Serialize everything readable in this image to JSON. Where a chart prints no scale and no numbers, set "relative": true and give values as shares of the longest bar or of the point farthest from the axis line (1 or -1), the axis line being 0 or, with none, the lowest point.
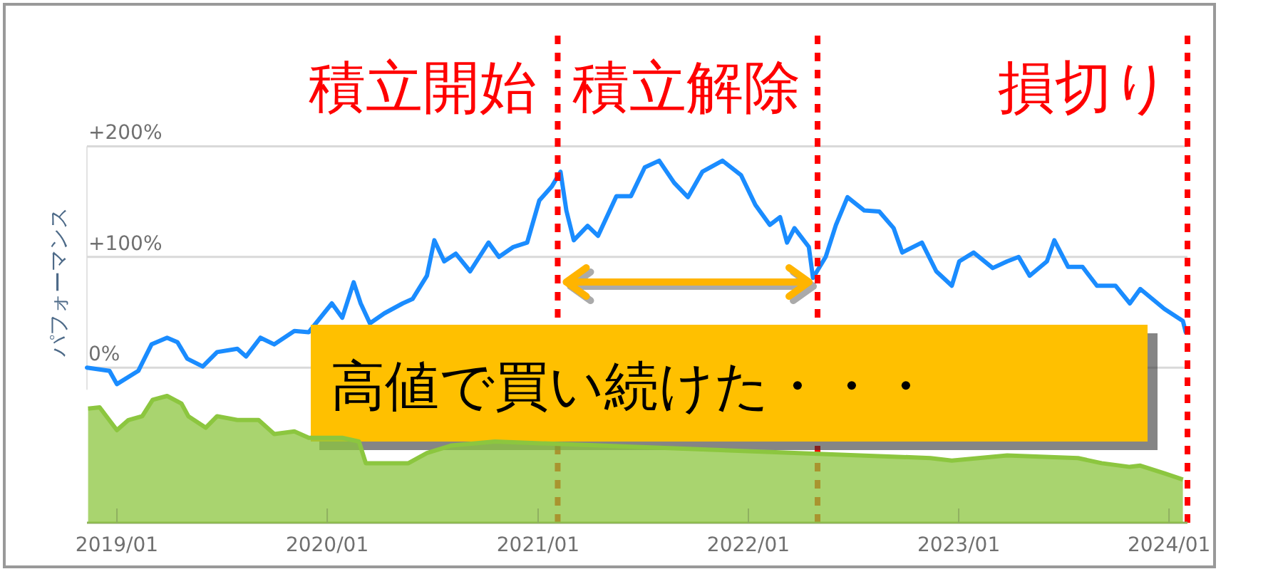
{
  "chart_data": [
    {
      "type": "line",
      "ylabel": "パフォーマンス",
      "x": [
        "2018-11-10",
        "2018-12-19",
        "2019-01-01",
        "2019-02-07",
        "2019-03-02",
        "2019-03-29",
        "2019-04-16",
        "2019-05-03",
        "2019-05-30",
        "2019-06-24",
        "2019-07-29",
        "2019-08-13",
        "2019-09-07",
        "2019-10-01",
        "2019-11-05",
        "2019-11-30",
        "2020-01-09",
        "2020-01-27",
        "2020-02-16",
        "2020-02-28",
        "2020-03-15",
        "2020-04-09",
        "2020-05-11",
        "2020-05-28",
        "2020-06-22",
        "2020-07-05",
        "2020-07-22",
        "2020-08-11",
        "2020-09-05",
        "2020-10-07",
        "2020-10-25",
        "2020-11-19",
        "2020-12-13",
        "2021-01-03",
        "2021-01-25",
        "2021-02-09",
        "2021-02-19",
        "2021-03-04",
        "2021-03-28",
        "2021-04-15",
        "2021-05-17",
        "2021-06-11",
        "2021-07-05",
        "2021-07-30",
        "2021-08-25",
        "2021-09-18",
        "2021-10-13",
        "2021-11-17",
        "2021-12-19",
        "2022-01-13",
        "2022-02-07",
        "2022-02-25",
        "2022-03-09",
        "2022-03-22",
        "2022-04-16",
        "2022-04-23",
        "2022-05-15",
        "2022-06-02",
        "2022-06-22",
        "2022-07-21",
        "2022-08-16",
        "2022-09-10",
        "2022-09-25",
        "2022-10-29",
        "2022-11-23",
        "2022-12-20",
        "2023-01-02",
        "2023-01-27",
        "2023-03-01",
        "2023-03-26",
        "2023-04-15",
        "2023-05-04",
        "2023-06-03",
        "2023-06-16",
        "2023-07-10",
        "2023-08-04",
        "2023-08-29",
        "2023-09-30",
        "2023-10-25",
        "2023-11-12",
        "2023-12-24",
        "2024-01-25",
        "2024-01-30"
      ],
      "series": [
        {
          "color": "#1a8cff",
          "values": [
            0,
            -3,
            -15,
            -3,
            21,
            27,
            23,
            8,
            1,
            14,
            17,
            10,
            27,
            21,
            33,
            32,
            58,
            45,
            77,
            58,
            40,
            49,
            58,
            62,
            83,
            115,
            96,
            103,
            87,
            113,
            100,
            109,
            113,
            151,
            164,
            177,
            142,
            115,
            128,
            119,
            155,
            155,
            181,
            187,
            167,
            154,
            177,
            187,
            174,
            147,
            129,
            136,
            113,
            126,
            109,
            81,
            100,
            129,
            154,
            142,
            141,
            126,
            104,
            113,
            87,
            74,
            96,
            104,
            90,
            96,
            100,
            83,
            96,
            115,
            91,
            91,
            74,
            74,
            58,
            71,
            53,
            42,
            32
          ]
        }
      ],
      "xlim": [
        "2018-11-10",
        "2024-02-02"
      ],
      "ylim": [
        -20,
        200
      ],
      "yticks": [
        {
          "value": 0,
          "label": "0%"
        },
        {
          "value": 100,
          "label": "+100%"
        },
        {
          "value": 200,
          "label": "+200%"
        }
      ],
      "grid": "y",
      "tick_labels": "y",
      "ref_lines": [
        {
          "axis": "x",
          "value": "2021-02-04",
          "label": "積立開始",
          "color": "#ff0000",
          "line_style": "dotted"
        },
        {
          "axis": "x",
          "value": "2022-05-01",
          "label": "積立解除",
          "color": "#ff0000",
          "line_style": "dotted"
        },
        {
          "axis": "x",
          "value": "2024-02-02",
          "label": "損切り",
          "color": "#ff0000",
          "line_style": "dotted"
        }
      ],
      "annotations": [
        "高値で買い続けた・・・"
      ]
    },
    {
      "type": "area",
      "relative": true,
      "x": [
        "2018-11-12",
        "2018-12-02",
        "2019-01-01",
        "2019-01-21",
        "2019-02-14",
        "2019-03-04",
        "2019-03-29",
        "2019-04-23",
        "2019-05-05",
        "2019-06-04",
        "2019-06-24",
        "2019-07-29",
        "2019-09-04",
        "2019-10-01",
        "2019-11-05",
        "2019-11-30",
        "2020-01-27",
        "2020-02-25",
        "2020-03-08",
        "2020-03-23",
        "2020-05-21",
        "2020-06-22",
        "2020-08-04",
        "2020-10-18",
        "2022-11-13",
        "2022-12-20",
        "2023-03-26",
        "2023-07-27",
        "2023-09-06",
        "2023-10-25",
        "2023-11-12",
        "2023-12-24",
        "2024-01-25"
      ],
      "series": [
        {
          "color": "#8cc63f",
          "values": [
            0.9,
            0.91,
            0.73,
            0.81,
            0.84,
            0.97,
            1,
            0.94,
            0.84,
            0.75,
            0.84,
            0.81,
            0.81,
            0.7,
            0.72,
            0.67,
            0.67,
            0.64,
            0.47,
            0.47,
            0.47,
            0.55,
            0.61,
            0.64,
            0.51,
            0.49,
            0.53,
            0.51,
            0.47,
            0.44,
            0.45,
            0.39,
            0.34
          ]
        }
      ],
      "xlim": [
        "2018-11-10",
        "2024-02-02"
      ],
      "xticks": [
        {
          "value": "2019-01",
          "label": "2019/01"
        },
        {
          "value": "2020-01",
          "label": "2020/01"
        },
        {
          "value": "2021-01",
          "label": "2021/01"
        },
        {
          "value": "2022-01",
          "label": "2022/01"
        },
        {
          "value": "2023-01",
          "label": "2023/01"
        },
        {
          "value": "2024-01",
          "label": "2024/01"
        }
      ],
      "tick_labels": "x"
    }
  ]
}
